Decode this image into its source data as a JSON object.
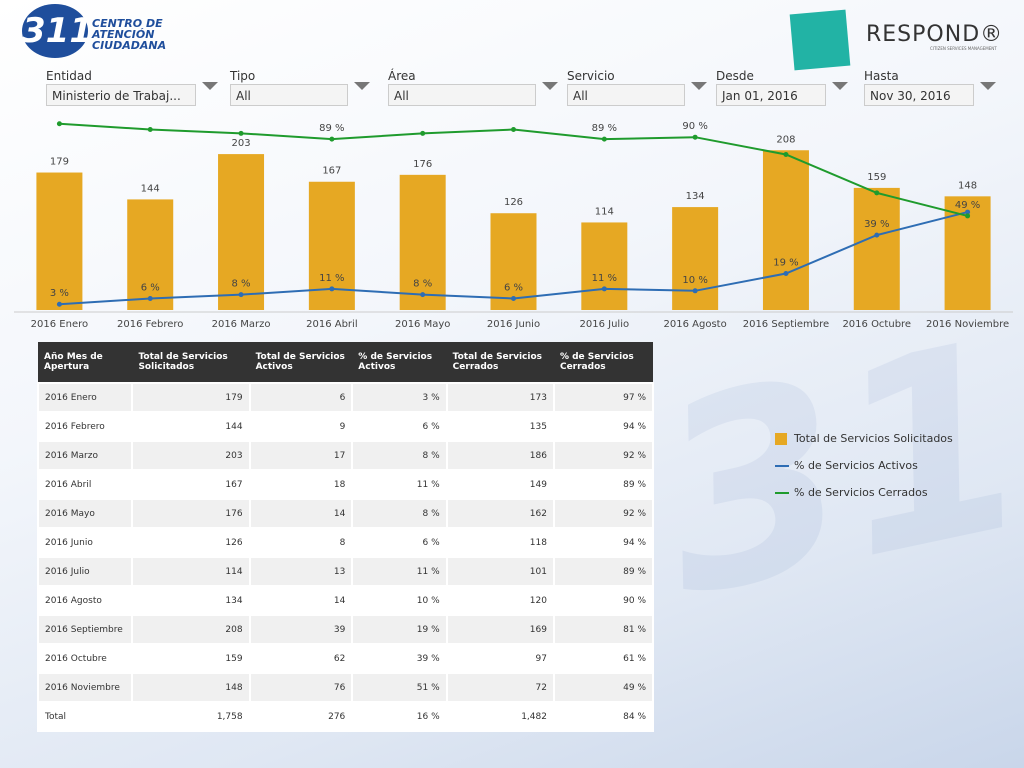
{
  "header": {
    "logo_number": "311",
    "logo_text": [
      "CENTRO DE",
      "ATENCIÓN",
      "CIUDADANA"
    ],
    "brand": "RESPOND®",
    "brand_tagline": "CITIZEN SERVICES MANAGEMENT"
  },
  "filters": [
    {
      "label": "Entidad",
      "value": "Ministerio de Trabaj..."
    },
    {
      "label": "Tipo",
      "value": "All"
    },
    {
      "label": "Área",
      "value": "All"
    },
    {
      "label": "Servicio",
      "value": "All"
    },
    {
      "label": "Desde",
      "value": "Jan 01, 2016"
    },
    {
      "label": "Hasta",
      "value": "Nov 30, 2016"
    }
  ],
  "chart_data": {
    "type": "bar",
    "categories": [
      "2016 Enero",
      "2016 Febrero",
      "2016 Marzo",
      "2016 Abril",
      "2016 Mayo",
      "2016 Junio",
      "2016 Julio",
      "2016 Agosto",
      "2016 Septiembre",
      "2016 Octubre",
      "2016 Noviembre"
    ],
    "ylim": [
      0,
      250
    ],
    "y2lim": [
      0,
      100
    ],
    "legend": "right",
    "series": [
      {
        "name": "Total de Servicios Solicitados",
        "type": "bar",
        "color": "#e6a823",
        "values": [
          179,
          144,
          203,
          167,
          176,
          126,
          114,
          134,
          208,
          159,
          148
        ]
      },
      {
        "name": "% de Servicios Activos",
        "type": "line",
        "axis": "y2",
        "color": "#2e6db4",
        "values": [
          3,
          6,
          8,
          11,
          8,
          6,
          11,
          10,
          19,
          39,
          51
        ],
        "value_labels": [
          "3 %",
          "6 %",
          "8 %",
          "11 %",
          "8 %",
          "6 %",
          "11 %",
          "10 %",
          "19 %",
          "39 %",
          null
        ]
      },
      {
        "name": "% de Servicios Cerrados",
        "type": "line",
        "axis": "y2",
        "color": "#1f9b2d",
        "values": [
          97,
          94,
          92,
          89,
          92,
          94,
          89,
          90,
          81,
          61,
          49
        ],
        "value_labels": [
          null,
          null,
          null,
          "89 %",
          null,
          null,
          "89 %",
          "90 %",
          null,
          null,
          "49 %"
        ]
      }
    ]
  },
  "table": {
    "columns": [
      "Año Mes de Apertura",
      "Total de Servicios Solicitados",
      "Total de Servicios Activos",
      "% de Servicios Activos",
      "Total de Servicios Cerrados",
      "% de Servicios Cerrados"
    ],
    "rows": [
      [
        "2016 Enero",
        "179",
        "6",
        "3 %",
        "173",
        "97 %"
      ],
      [
        "2016 Febrero",
        "144",
        "9",
        "6 %",
        "135",
        "94 %"
      ],
      [
        "2016 Marzo",
        "203",
        "17",
        "8 %",
        "186",
        "92 %"
      ],
      [
        "2016 Abril",
        "167",
        "18",
        "11 %",
        "149",
        "89 %"
      ],
      [
        "2016 Mayo",
        "176",
        "14",
        "8 %",
        "162",
        "92 %"
      ],
      [
        "2016 Junio",
        "126",
        "8",
        "6 %",
        "118",
        "94 %"
      ],
      [
        "2016 Julio",
        "114",
        "13",
        "11 %",
        "101",
        "89 %"
      ],
      [
        "2016 Agosto",
        "134",
        "14",
        "10 %",
        "120",
        "90 %"
      ],
      [
        "2016 Septiembre",
        "208",
        "39",
        "19 %",
        "169",
        "81 %"
      ],
      [
        "2016 Octubre",
        "159",
        "62",
        "39 %",
        "97",
        "61 %"
      ],
      [
        "2016 Noviembre",
        "148",
        "76",
        "51 %",
        "72",
        "49 %"
      ],
      [
        "Total",
        "1,758",
        "276",
        "16 %",
        "1,482",
        "84 %"
      ]
    ]
  }
}
